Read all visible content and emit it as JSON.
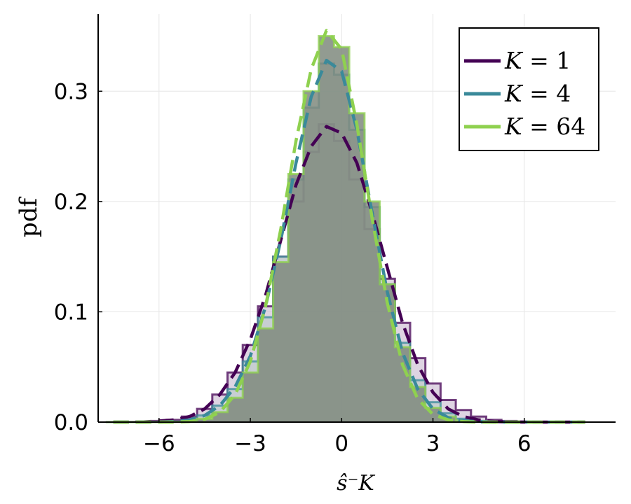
{
  "chart_data": {
    "type": "line",
    "title": "",
    "xlabel": "ŝ⁻K",
    "ylabel": "pdf",
    "xlim": [
      -8.0,
      9.0
    ],
    "ylim": [
      0.0,
      0.37
    ],
    "xticks": [
      -6,
      -3,
      0,
      3,
      6
    ],
    "xtick_labels": [
      "−6",
      "−3",
      "0",
      "3",
      "6"
    ],
    "yticks": [
      0.0,
      0.1,
      0.2,
      0.3
    ],
    "ytick_labels": [
      "0.0",
      "0.1",
      "0.2",
      "0.3"
    ],
    "grid": true,
    "legend_position": "top-right",
    "series": [
      {
        "name": "K = 1",
        "legend_var": "K",
        "legend_value": "1",
        "color": "#440154",
        "hist_fill": "#c8b8cf",
        "histogram": {
          "x": [
            -7.5,
            -7,
            -6.5,
            -6,
            -5.5,
            -5,
            -4.5,
            -4,
            -3.5,
            -3,
            -2.5,
            -2,
            -1.5,
            -1,
            -0.5,
            0,
            0.5,
            1,
            1.5,
            2,
            2.5,
            3,
            3.5,
            4,
            4.5,
            5,
            5.5,
            6,
            6.5,
            7,
            7.5
          ],
          "y": [
            0.0,
            0.0002,
            0.0005,
            0.001,
            0.002,
            0.005,
            0.012,
            0.025,
            0.045,
            0.07,
            0.105,
            0.15,
            0.2,
            0.245,
            0.27,
            0.255,
            0.22,
            0.175,
            0.13,
            0.09,
            0.058,
            0.035,
            0.02,
            0.011,
            0.005,
            0.002,
            0.001,
            0.0005,
            0.0002,
            0.0,
            0.0
          ]
        },
        "fit": {
          "x": [
            -7.5,
            -7,
            -6.5,
            -6,
            -5.5,
            -5,
            -4.5,
            -4,
            -3.5,
            -3,
            -2.5,
            -2,
            -1.5,
            -1,
            -0.5,
            0,
            0.5,
            1,
            1.5,
            2,
            2.5,
            3,
            3.5,
            4,
            4.5,
            5,
            5.5,
            6,
            6.5,
            7,
            7.5,
            8
          ],
          "y": [
            0.0,
            0.0,
            0.0002,
            0.001,
            0.002,
            0.005,
            0.012,
            0.025,
            0.045,
            0.075,
            0.115,
            0.165,
            0.215,
            0.25,
            0.268,
            0.262,
            0.235,
            0.19,
            0.14,
            0.09,
            0.052,
            0.027,
            0.012,
            0.005,
            0.002,
            0.0006,
            0.0002,
            0.0,
            0.0,
            0.0,
            0.0,
            0.0
          ]
        }
      },
      {
        "name": "K = 4",
        "legend_var": "K",
        "legend_value": "4",
        "color": "#3a8a9a",
        "hist_fill": "#b8c9c8",
        "histogram": {
          "x": [
            -7.5,
            -7,
            -6.5,
            -6,
            -5.5,
            -5,
            -4.5,
            -4,
            -3.5,
            -3,
            -2.5,
            -2,
            -1.5,
            -1,
            -0.5,
            0,
            0.5,
            1,
            1.5,
            2,
            2.5,
            3,
            3.5,
            4,
            4.5,
            5,
            5.5,
            6,
            6.5,
            7,
            7.5
          ],
          "y": [
            0.0,
            0.0,
            0.0,
            0.0002,
            0.0005,
            0.002,
            0.006,
            0.015,
            0.03,
            0.055,
            0.095,
            0.15,
            0.22,
            0.285,
            0.325,
            0.315,
            0.265,
            0.195,
            0.125,
            0.072,
            0.038,
            0.018,
            0.008,
            0.003,
            0.001,
            0.0003,
            0.0,
            0.0,
            0.0,
            0.0,
            0.0
          ]
        },
        "fit": {
          "x": [
            -7.5,
            -7,
            -6.5,
            -6,
            -5.5,
            -5,
            -4.5,
            -4,
            -3.5,
            -3,
            -2.5,
            -2,
            -1.5,
            -1,
            -0.5,
            0,
            0.5,
            1,
            1.5,
            2,
            2.5,
            3,
            3.5,
            4,
            4.5,
            5,
            5.5,
            6,
            6.5,
            7,
            7.5,
            8
          ],
          "y": [
            0.0,
            0.0,
            0.0,
            0.0,
            0.0005,
            0.002,
            0.006,
            0.015,
            0.032,
            0.06,
            0.105,
            0.165,
            0.235,
            0.295,
            0.328,
            0.318,
            0.265,
            0.19,
            0.118,
            0.063,
            0.03,
            0.012,
            0.004,
            0.0012,
            0.0003,
            0.0,
            0.0,
            0.0,
            0.0,
            0.0,
            0.0,
            0.0
          ]
        }
      },
      {
        "name": "K = 64",
        "legend_var": "K",
        "legend_value": "64",
        "color": "#8fd14f",
        "hist_fill": "#7f8a7e",
        "histogram": {
          "x": [
            -7.5,
            -7,
            -6.5,
            -6,
            -5.5,
            -5,
            -4.5,
            -4,
            -3.5,
            -3,
            -2.5,
            -2,
            -1.5,
            -1,
            -0.5,
            0,
            0.5,
            1,
            1.5,
            2,
            2.5,
            3,
            3.5,
            4,
            4.5,
            5,
            5.5,
            6,
            6.5,
            7,
            7.5
          ],
          "y": [
            0.0,
            0.0,
            0.0,
            0.0,
            0.0002,
            0.0008,
            0.003,
            0.009,
            0.022,
            0.045,
            0.085,
            0.145,
            0.225,
            0.3,
            0.35,
            0.34,
            0.28,
            0.2,
            0.125,
            0.068,
            0.032,
            0.013,
            0.005,
            0.0015,
            0.0004,
            0.0,
            0.0,
            0.0,
            0.0,
            0.0,
            0.0
          ]
        },
        "fit": {
          "x": [
            -7.5,
            -7,
            -6.5,
            -6,
            -5.5,
            -5,
            -4.5,
            -4,
            -3.5,
            -3,
            -2.5,
            -2,
            -1.5,
            -1,
            -0.5,
            0,
            0.5,
            1,
            1.5,
            2,
            2.5,
            3,
            3.5,
            4,
            4.5,
            5,
            5.5,
            6,
            6.5,
            7,
            7.5,
            8
          ],
          "y": [
            0.0,
            0.0,
            0.0,
            0.0,
            0.0,
            0.0005,
            0.0025,
            0.009,
            0.025,
            0.055,
            0.105,
            0.175,
            0.255,
            0.32,
            0.355,
            0.338,
            0.27,
            0.185,
            0.108,
            0.052,
            0.021,
            0.007,
            0.002,
            0.0005,
            0.0,
            0.0,
            0.0,
            0.0,
            0.0,
            0.0,
            0.0,
            0.0
          ]
        }
      }
    ]
  }
}
